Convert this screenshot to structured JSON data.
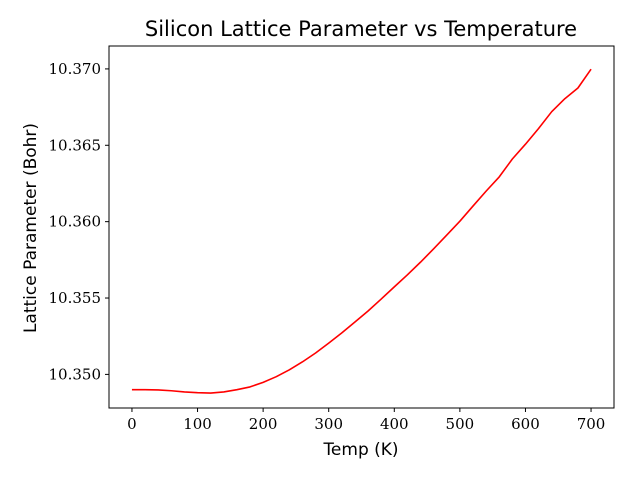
{
  "chart_data": {
    "type": "line",
    "title": "Silicon Lattice Parameter vs Temperature",
    "xlabel": "Temp (K)",
    "ylabel": "Lattice Parameter (Bohr)",
    "xlim": [
      -35,
      735
    ],
    "ylim": [
      10.3478,
      10.3715
    ],
    "xticks": [
      0,
      100,
      200,
      300,
      400,
      500,
      600,
      700
    ],
    "xtick_labels": [
      "0",
      "100",
      "200",
      "300",
      "400",
      "500",
      "600",
      "700"
    ],
    "yticks": [
      10.35,
      10.355,
      10.36,
      10.365,
      10.37
    ],
    "ytick_labels": [
      "10.350",
      "10.355",
      "10.360",
      "10.365",
      "10.370"
    ],
    "grid": false,
    "series": [
      {
        "name": "Lattice Parameter",
        "color": "#ff0000",
        "x": [
          0,
          20,
          40,
          60,
          80,
          100,
          120,
          140,
          160,
          180,
          200,
          220,
          240,
          260,
          280,
          300,
          320,
          340,
          360,
          380,
          400,
          420,
          440,
          460,
          480,
          500,
          520,
          540,
          560,
          580,
          600,
          620,
          640,
          660,
          680,
          700
        ],
        "y": [
          10.349,
          10.349,
          10.34898,
          10.34893,
          10.34885,
          10.3488,
          10.34878,
          10.34885,
          10.349,
          10.34918,
          10.34948,
          10.34985,
          10.3503,
          10.35082,
          10.3514,
          10.35205,
          10.35272,
          10.35343,
          10.35415,
          10.35493,
          10.35573,
          10.35652,
          10.35735,
          10.35822,
          10.35912,
          10.36003,
          10.36102,
          10.362,
          10.36293,
          10.3641,
          10.36507,
          10.3661,
          10.3672,
          10.36805,
          10.36875,
          10.36998
        ]
      }
    ]
  }
}
